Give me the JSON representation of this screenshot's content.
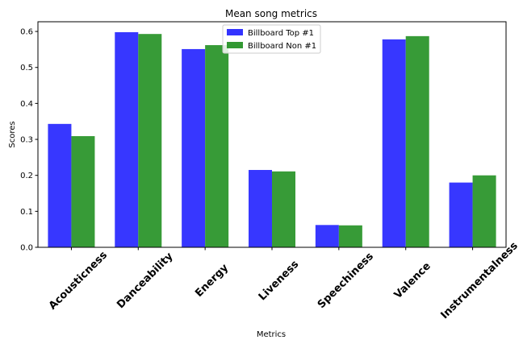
{
  "chart_data": {
    "type": "bar",
    "title": "Mean song metrics",
    "xlabel": "Metrics",
    "ylabel": "Scores",
    "categories": [
      "Acousticness",
      "Danceability",
      "Energy",
      "Liveness",
      "Speechiness",
      "Valence",
      "Instrumentalness"
    ],
    "series": [
      {
        "name": "Billboard Top #1",
        "color": "#3333ff",
        "values": [
          0.343,
          0.598,
          0.551,
          0.215,
          0.062,
          0.578,
          0.18
        ]
      },
      {
        "name": "Billboard Non #1",
        "color": "#339933",
        "values": [
          0.309,
          0.593,
          0.562,
          0.211,
          0.061,
          0.587,
          0.2
        ]
      }
    ],
    "ylim": [
      0,
      0.627
    ],
    "yticks": [
      0.0,
      0.1,
      0.2,
      0.3,
      0.4,
      0.5,
      0.6
    ],
    "ytick_labels": [
      "0.0",
      "0.1",
      "0.2",
      "0.3",
      "0.4",
      "0.5",
      "0.6"
    ],
    "grid": false,
    "legend_position": "top-center"
  }
}
